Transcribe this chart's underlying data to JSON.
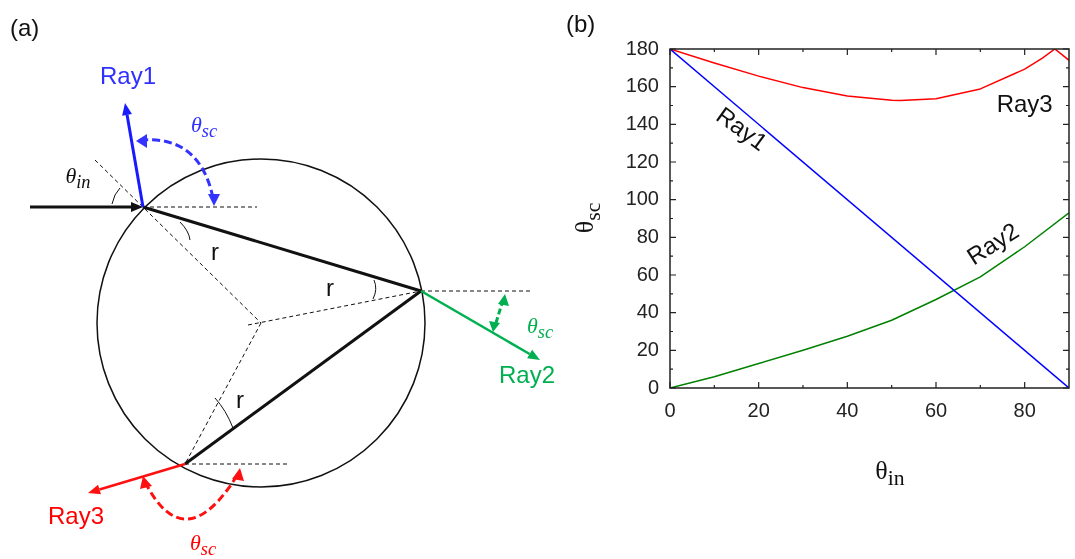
{
  "chart_data": [
    {
      "type": "other",
      "title": "(a)",
      "annotations": [
        "Ray1",
        "θ$_{sc}$",
        "θ$_{in}$",
        "r",
        "r",
        "Ray2",
        "θ$_{sc}$",
        "r",
        "Ray3",
        "θ$_{sc}$"
      ]
    },
    {
      "type": "line",
      "title": "(b)",
      "xlabel": "θ$_{in}$",
      "ylabel": "θ$_{sc}$",
      "xlim": [
        0,
        90
      ],
      "ylim": [
        0,
        180
      ],
      "xticks": [
        0,
        {
          "value": 10,
          "label": null
        },
        20,
        {
          "value": 30,
          "label": null
        },
        40,
        {
          "value": 50,
          "label": null
        },
        60,
        {
          "value": 70,
          "label": null
        },
        80
      ],
      "yticks": [
        0,
        {
          "value": 10,
          "label": null
        },
        20,
        {
          "value": 30,
          "label": null
        },
        40,
        {
          "value": 50,
          "label": null
        },
        60,
        {
          "value": 70,
          "label": null
        },
        80,
        {
          "value": 90,
          "label": null
        },
        100,
        {
          "value": 110,
          "label": null
        },
        120,
        {
          "value": 130,
          "label": null
        },
        140,
        {
          "value": 150,
          "label": null
        },
        160,
        {
          "value": 170,
          "label": null
        },
        180
      ],
      "grid": false,
      "legend": false,
      "marker": "none",
      "line_style": "solid",
      "series": [
        {
          "name": "Ray1",
          "color": "#0000ff",
          "x": [
            0,
            90
          ],
          "values": [
            180,
            0
          ]
        },
        {
          "name": "Ray2",
          "color": "#008000",
          "x": [
            0,
            10,
            20,
            30,
            40,
            50,
            60,
            70,
            80,
            90
          ],
          "values": [
            0,
            6,
            13,
            20,
            27.5,
            36,
            47,
            59,
            75,
            93
          ]
        },
        {
          "name": "Ray3",
          "color": "#ff0000",
          "x": [
            0,
            10,
            20,
            30,
            40,
            50,
            52,
            60,
            70,
            80,
            84,
            86.8,
            88,
            90
          ],
          "values": [
            180,
            172.6,
            165.6,
            159.5,
            155,
            152.8,
            152.6,
            153.6,
            158.8,
            169.3,
            175.2,
            180,
            177.8,
            174
          ]
        }
      ]
    }
  ]
}
